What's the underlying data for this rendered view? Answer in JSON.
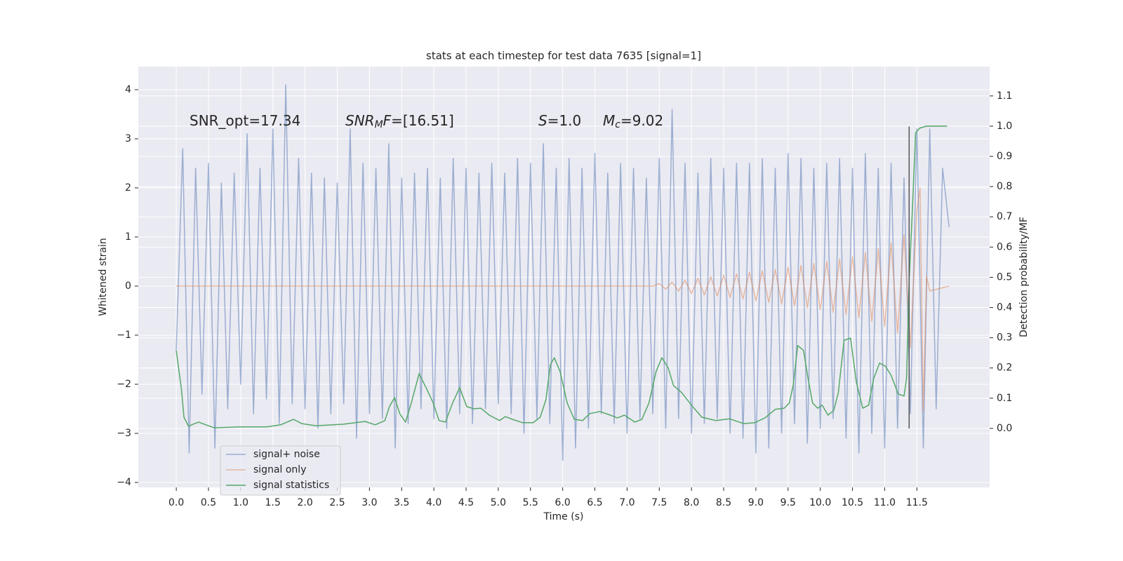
{
  "chart_data": {
    "type": "line",
    "title": "stats at each timestep for test data 7635 [signal=1]",
    "xlabel": "Time (s)",
    "ylabel": "Whitened strain",
    "y2label": "Detection probability/MF",
    "annotations": [
      [
        "SNR_opt=17.34"
      ],
      [
        "SNR",
        "M",
        "F",
        "=[16.51]"
      ],
      [
        "S",
        "=1.0"
      ],
      [
        "M",
        "c",
        "=9.02"
      ]
    ],
    "xlim": [
      -0.59,
      12.63
    ],
    "ylim": [
      -4.1,
      4.47
    ],
    "y2lim": [
      -0.195,
      1.197
    ],
    "xticks": [
      {
        "value": 0,
        "label": "0.0"
      },
      0.5,
      {
        "value": 1,
        "label": "1.0"
      },
      1.5,
      {
        "value": 2,
        "label": "2.0"
      },
      2.5,
      {
        "value": 3,
        "label": "3.0"
      },
      3.5,
      {
        "value": 4,
        "label": "4.0"
      },
      4.5,
      {
        "value": 5,
        "label": "5.0"
      },
      5.5,
      {
        "value": 6,
        "label": "6.0"
      },
      6.5,
      {
        "value": 7,
        "label": "7.0"
      },
      7.5,
      {
        "value": 8,
        "label": "8.0"
      },
      8.5,
      {
        "value": 9,
        "label": "9.0"
      },
      9.5,
      {
        "value": 10,
        "label": "10.0"
      },
      10.5,
      {
        "value": 11,
        "label": "11.0"
      },
      11.5
    ],
    "yticks": [
      {
        "value": -4,
        "label": "−4"
      },
      {
        "value": -3,
        "label": "−3"
      },
      {
        "value": -2,
        "label": "−2"
      },
      {
        "value": -1,
        "label": "−1"
      },
      0,
      1,
      2,
      3,
      4
    ],
    "y2ticks": [
      {
        "value": 0,
        "label": "0.0"
      },
      0.1,
      0.2,
      0.3,
      0.4,
      0.5,
      0.6,
      0.7,
      0.8,
      0.9,
      {
        "value": 1,
        "label": "1.0"
      },
      1.1
    ],
    "grid": true,
    "legend": "lower left",
    "vline": {
      "x": 11.38,
      "y": [
        -2.9,
        3.25
      ],
      "color": "#555555"
    },
    "series": [
      {
        "name": "signal+ noise",
        "color": "#4c72b0",
        "opacity": 0.5,
        "x": [
          0.0,
          0.1,
          0.2,
          0.3,
          0.4,
          0.5,
          0.6,
          0.7,
          0.8,
          0.9,
          1.0,
          1.1,
          1.2,
          1.3,
          1.4,
          1.5,
          1.6,
          1.7,
          1.8,
          1.9,
          2.0,
          2.1,
          2.2,
          2.3,
          2.4,
          2.5,
          2.6,
          2.7,
          2.8,
          2.9,
          3.0,
          3.1,
          3.2,
          3.3,
          3.4,
          3.5,
          3.6,
          3.7,
          3.8,
          3.9,
          4.0,
          4.1,
          4.2,
          4.3,
          4.4,
          4.5,
          4.6,
          4.7,
          4.8,
          4.9,
          5.0,
          5.1,
          5.2,
          5.3,
          5.4,
          5.5,
          5.6,
          5.7,
          5.8,
          5.9,
          6.0,
          6.1,
          6.2,
          6.3,
          6.4,
          6.5,
          6.6,
          6.7,
          6.8,
          6.9,
          7.0,
          7.1,
          7.2,
          7.3,
          7.4,
          7.5,
          7.6,
          7.7,
          7.8,
          7.9,
          8.0,
          8.1,
          8.2,
          8.3,
          8.4,
          8.5,
          8.6,
          8.7,
          8.8,
          8.9,
          9.0,
          9.1,
          9.2,
          9.3,
          9.4,
          9.5,
          9.6,
          9.7,
          9.8,
          9.9,
          10.0,
          10.1,
          10.2,
          10.3,
          10.4,
          10.5,
          10.6,
          10.7,
          10.8,
          10.9,
          11.0,
          11.1,
          11.2,
          11.3,
          11.4,
          11.5,
          11.6,
          11.7,
          11.8,
          11.9,
          12.0
        ],
        "values": [
          -1.3,
          2.8,
          -3.4,
          2.4,
          -2.2,
          2.5,
          -3.3,
          2.1,
          -2.5,
          2.3,
          -2.0,
          3.1,
          -2.6,
          2.4,
          -2.3,
          3.2,
          -2.8,
          4.1,
          -2.4,
          2.6,
          -2.5,
          2.3,
          -2.9,
          2.2,
          -2.6,
          2.1,
          -2.4,
          3.2,
          -3.1,
          2.5,
          -2.6,
          2.4,
          -2.7,
          2.9,
          -3.3,
          2.2,
          -2.8,
          2.3,
          -2.5,
          2.4,
          -2.7,
          2.2,
          -2.9,
          2.6,
          -2.6,
          2.4,
          -2.8,
          2.3,
          -2.5,
          2.5,
          -2.4,
          2.3,
          -2.6,
          2.6,
          -3.0,
          2.5,
          -2.7,
          2.9,
          -2.8,
          2.4,
          -3.55,
          2.6,
          -3.3,
          2.4,
          -2.9,
          2.7,
          -2.6,
          2.3,
          -2.8,
          2.5,
          -3.0,
          2.4,
          -2.7,
          2.2,
          -2.6,
          2.6,
          -2.9,
          3.6,
          -2.7,
          2.5,
          -3.0,
          2.3,
          -2.8,
          2.6,
          -2.7,
          2.4,
          -3.0,
          2.5,
          -3.1,
          2.5,
          -3.4,
          2.6,
          -3.3,
          2.4,
          -3.0,
          2.7,
          -2.8,
          2.6,
          -3.2,
          2.4,
          -2.9,
          2.5,
          -2.7,
          2.6,
          -3.1,
          2.4,
          -3.4,
          2.7,
          -3.0,
          2.4,
          -3.3,
          2.5,
          -2.9,
          2.2,
          -2.6,
          3.2,
          -3.3,
          3.2,
          -2.5,
          2.4,
          1.2
        ]
      },
      {
        "name": "signal only",
        "color": "#dd8452",
        "opacity": 0.5,
        "x": [
          0.0,
          7.4,
          7.5,
          7.6,
          7.7,
          7.8,
          7.9,
          8.0,
          8.1,
          8.2,
          8.3,
          8.4,
          8.5,
          8.6,
          8.7,
          8.8,
          8.9,
          9.0,
          9.1,
          9.2,
          9.3,
          9.4,
          9.5,
          9.6,
          9.7,
          9.8,
          9.9,
          10.0,
          10.1,
          10.2,
          10.3,
          10.4,
          10.5,
          10.6,
          10.7,
          10.8,
          10.9,
          11.0,
          11.1,
          11.2,
          11.3,
          11.4,
          11.5,
          11.55,
          11.6,
          11.65,
          11.7,
          12.0
        ],
        "values": [
          0,
          0,
          0.05,
          -0.06,
          0.08,
          -0.1,
          0.12,
          -0.15,
          0.16,
          -0.18,
          0.19,
          -0.2,
          0.22,
          -0.23,
          0.25,
          -0.26,
          0.28,
          -0.3,
          0.31,
          -0.33,
          0.34,
          -0.36,
          0.38,
          -0.4,
          0.42,
          -0.44,
          0.46,
          -0.48,
          0.5,
          -0.53,
          0.55,
          -0.58,
          0.6,
          -0.64,
          0.68,
          -0.72,
          0.76,
          -0.82,
          0.88,
          -0.96,
          1.05,
          -1.25,
          1.55,
          2.0,
          -2.55,
          0.2,
          -0.1,
          0.0
        ]
      },
      {
        "name": "signal statistics",
        "color": "#55a868",
        "axis": "y2",
        "x": [
          0.0,
          0.08,
          0.12,
          0.19,
          0.26,
          0.35,
          0.46,
          0.59,
          0.97,
          1.4,
          1.62,
          1.82,
          1.95,
          2.17,
          2.6,
          2.93,
          3.09,
          3.24,
          3.31,
          3.39,
          3.47,
          3.56,
          3.65,
          3.77,
          3.89,
          3.99,
          4.08,
          4.18,
          4.29,
          4.4,
          4.51,
          4.62,
          4.73,
          4.86,
          5.02,
          5.11,
          5.22,
          5.38,
          5.54,
          5.65,
          5.74,
          5.81,
          5.87,
          5.96,
          6.07,
          6.18,
          6.31,
          6.42,
          6.58,
          6.74,
          6.85,
          6.96,
          7.12,
          7.23,
          7.34,
          7.45,
          7.54,
          7.64,
          7.72,
          7.85,
          8.0,
          8.16,
          8.38,
          8.59,
          8.81,
          8.98,
          9.14,
          9.3,
          9.44,
          9.52,
          9.58,
          9.65,
          9.74,
          9.81,
          9.88,
          9.96,
          10.03,
          10.12,
          10.21,
          10.28,
          10.37,
          10.47,
          10.56,
          10.66,
          10.75,
          10.83,
          10.92,
          11.01,
          11.1,
          11.21,
          11.3,
          11.34,
          11.38,
          11.43,
          11.48,
          11.54,
          11.65,
          11.97
        ],
        "values": [
          0.258,
          0.13,
          0.037,
          0.007,
          0.014,
          0.021,
          0.012,
          0.002,
          0.005,
          0.005,
          0.012,
          0.03,
          0.016,
          0.009,
          0.014,
          0.023,
          0.012,
          0.026,
          0.072,
          0.102,
          0.049,
          0.021,
          0.084,
          0.181,
          0.13,
          0.084,
          0.026,
          0.021,
          0.084,
          0.135,
          0.072,
          0.065,
          0.067,
          0.044,
          0.026,
          0.039,
          0.03,
          0.019,
          0.019,
          0.037,
          0.095,
          0.211,
          0.234,
          0.188,
          0.084,
          0.03,
          0.026,
          0.049,
          0.056,
          0.044,
          0.035,
          0.044,
          0.021,
          0.03,
          0.084,
          0.188,
          0.234,
          0.2,
          0.142,
          0.118,
          0.077,
          0.037,
          0.026,
          0.032,
          0.016,
          0.019,
          0.035,
          0.063,
          0.067,
          0.084,
          0.142,
          0.274,
          0.258,
          0.165,
          0.084,
          0.067,
          0.077,
          0.044,
          0.06,
          0.118,
          0.292,
          0.299,
          0.153,
          0.067,
          0.077,
          0.165,
          0.216,
          0.206,
          0.176,
          0.114,
          0.107,
          0.165,
          0.49,
          0.722,
          0.977,
          0.993,
          1.0,
          1.0
        ]
      }
    ]
  }
}
